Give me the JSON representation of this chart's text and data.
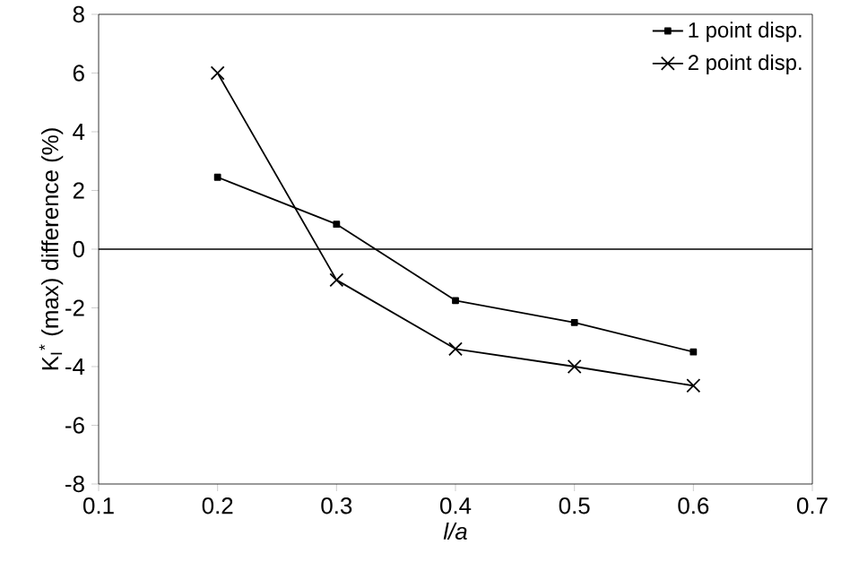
{
  "chart_data": {
    "type": "line",
    "xlabel": "l/a",
    "ylabel": "K$_{I}$$^{*}$ (max) difference (%)",
    "x": [
      0.2,
      0.3,
      0.4,
      0.5,
      0.6
    ],
    "series": [
      {
        "name": "1 point disp.",
        "color": "#000000",
        "marker": "square",
        "values": [
          2.45,
          0.85,
          -1.75,
          -2.5,
          -3.5
        ]
      },
      {
        "name": "2 point disp.",
        "color": "#000000",
        "marker": "cross",
        "values": [
          6.0,
          -1.05,
          -3.4,
          -4.0,
          -4.65
        ]
      }
    ],
    "xlim": [
      0.1,
      0.7
    ],
    "xticks": [
      0.1,
      0.2,
      0.3,
      0.4,
      0.5,
      0.6,
      0.7
    ],
    "ylim": [
      -8,
      8
    ],
    "yticks": [
      -8,
      -6,
      -4,
      -2,
      0,
      2,
      4,
      6,
      8
    ],
    "ref_lines": [
      {
        "axis": "y",
        "value": 0,
        "color": "#000000"
      }
    ],
    "grid": false,
    "legend": "top right",
    "line_style": "solid"
  }
}
